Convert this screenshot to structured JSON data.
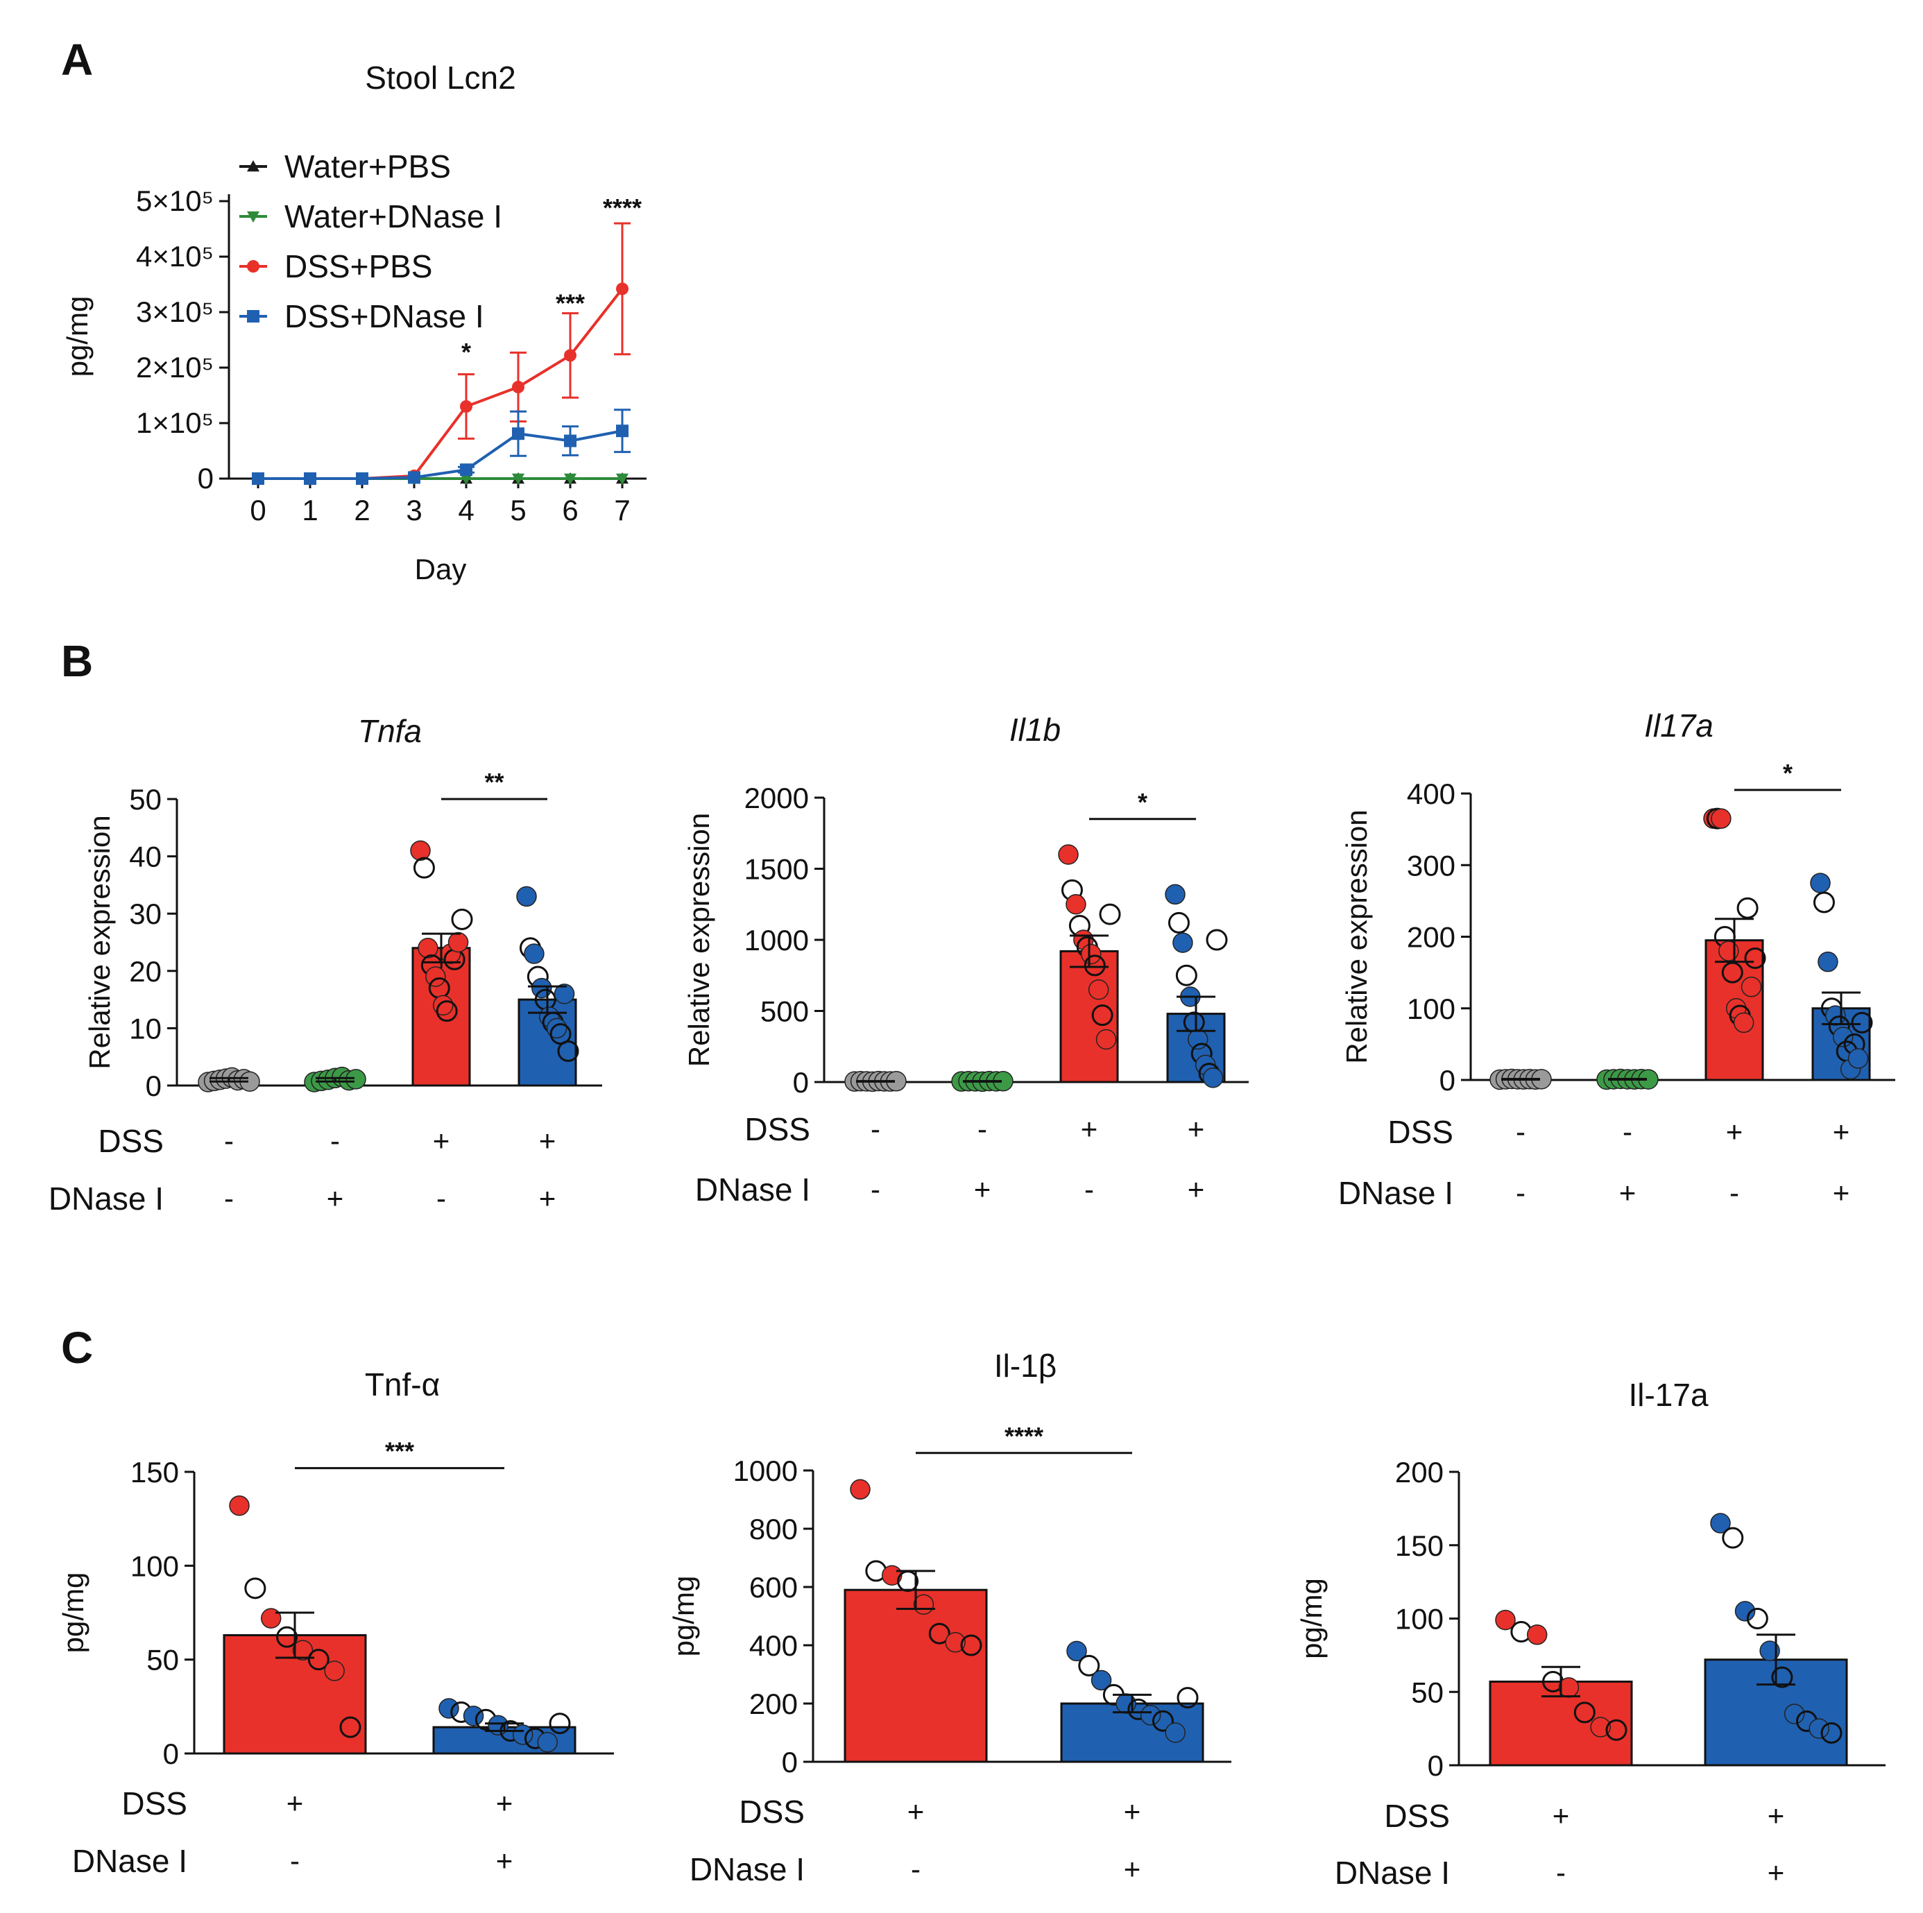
{
  "colors": {
    "water_pbs": "#1a1a1a",
    "water_dnase": "#2e8b3a",
    "dss_pbs": "#e8312a",
    "dss_dnase": "#2060b0",
    "grey_dot": "#9a9a9a",
    "green_dot": "#3c9a46"
  },
  "panels": {
    "a": "A",
    "b": "B",
    "c": "C"
  },
  "chart_data": [
    {
      "id": "A",
      "type": "line",
      "title": "Stool Lcn2",
      "xlabel": "Day",
      "ylabel": "pg/mg",
      "x": [
        0,
        1,
        2,
        3,
        4,
        5,
        6,
        7
      ],
      "xticks": [
        "0",
        "1",
        "2",
        "3",
        "4",
        "5",
        "6",
        "7"
      ],
      "ylim": [
        0,
        500000
      ],
      "yticks": [
        {
          "value": 0,
          "label": "0"
        },
        {
          "value": 100000,
          "label": "1×10⁵"
        },
        {
          "value": 200000,
          "label": "2×10⁵"
        },
        {
          "value": 300000,
          "label": "3×10⁵"
        },
        {
          "value": 400000,
          "label": "4×10⁵"
        },
        {
          "value": 500000,
          "label": "5×10⁵"
        }
      ],
      "legend_position": "top-left",
      "series": [
        {
          "name": "Water+PBS",
          "marker": "triangle-up",
          "color": "#1a1a1a",
          "values": [
            0,
            0,
            0,
            0,
            0,
            0,
            0,
            0
          ],
          "err": [
            0,
            0,
            0,
            0,
            0,
            0,
            0,
            0
          ]
        },
        {
          "name": "Water+DNase I",
          "marker": "triangle-down",
          "color": "#2e8b3a",
          "values": [
            0,
            0,
            0,
            0,
            0,
            0,
            0,
            0
          ],
          "err": [
            0,
            0,
            0,
            0,
            0,
            0,
            0,
            0
          ]
        },
        {
          "name": "DSS+PBS",
          "marker": "circle",
          "color": "#e8312a",
          "values": [
            0,
            0,
            0,
            5000,
            130000,
            165000,
            222000,
            342000
          ],
          "err": [
            0,
            0,
            0,
            0,
            58000,
            62000,
            76000,
            118000
          ]
        },
        {
          "name": "DSS+DNase I",
          "marker": "square",
          "color": "#2060b0",
          "values": [
            0,
            0,
            0,
            2000,
            16000,
            81000,
            68000,
            86000
          ],
          "err": [
            0,
            0,
            0,
            0,
            5000,
            40000,
            26000,
            38000
          ]
        }
      ],
      "annotations": [
        {
          "x": 4,
          "y": 230000,
          "text": "*"
        },
        {
          "x": 6,
          "y": 318000,
          "text": "***"
        },
        {
          "x": 7,
          "y": 490000,
          "text": "****"
        }
      ]
    },
    {
      "id": "B1",
      "type": "bar",
      "title": "Tnfa",
      "title_italic": true,
      "ylabel": "Relative expression",
      "ylim": [
        0,
        50
      ],
      "yticks": [
        0,
        10,
        20,
        30,
        40,
        50
      ],
      "row_labels": [
        "DSS",
        "DNase I"
      ],
      "groups": [
        {
          "dss": "-",
          "dnase": "-",
          "mean": 1,
          "sem": 0.3,
          "fill": "none",
          "dot": "#9a9a9a",
          "points": [
            0.6,
            0.8,
            1.0,
            1.2,
            1.4,
            0.9,
            1.1,
            0.7
          ]
        },
        {
          "dss": "-",
          "dnase": "+",
          "mean": 1,
          "sem": 0.3,
          "fill": "none",
          "dot": "#3c9a46",
          "points": [
            0.6,
            0.8,
            1.0,
            1.3,
            1.5,
            0.9,
            1.1
          ]
        },
        {
          "dss": "+",
          "dnase": "-",
          "mean": 24,
          "sem": 2.5,
          "fill": "#e8312a",
          "dot": "#e8312a",
          "points": [
            41,
            38,
            24,
            21,
            19,
            17,
            14,
            13,
            23,
            22,
            25,
            29
          ]
        },
        {
          "dss": "+",
          "dnase": "+",
          "mean": 15,
          "sem": 2.3,
          "fill": "#2060b0",
          "dot": "#2060b0",
          "points": [
            33,
            24,
            23,
            19,
            17,
            15,
            12,
            11,
            10,
            9,
            16,
            6
          ]
        }
      ],
      "sig": {
        "from": 2,
        "to": 3,
        "y": 50,
        "text": "**"
      }
    },
    {
      "id": "B2",
      "type": "bar",
      "title": "Il1b",
      "title_italic": true,
      "ylabel": "Relative expression",
      "ylim": [
        0,
        2000
      ],
      "yticks": [
        0,
        500,
        1000,
        1500,
        2000
      ],
      "row_labels": [
        "DSS",
        "DNase I"
      ],
      "groups": [
        {
          "dss": "-",
          "dnase": "-",
          "mean": 5,
          "sem": 2,
          "fill": "none",
          "dot": "#9a9a9a",
          "points": [
            4,
            6,
            5,
            3,
            7,
            5,
            4,
            6
          ]
        },
        {
          "dss": "-",
          "dnase": "+",
          "mean": 5,
          "sem": 2,
          "fill": "none",
          "dot": "#3c9a46",
          "points": [
            4,
            6,
            5,
            3,
            7,
            5,
            6
          ]
        },
        {
          "dss": "+",
          "dnase": "-",
          "mean": 920,
          "sem": 110,
          "fill": "#e8312a",
          "dot": "#e8312a",
          "points": [
            1600,
            1350,
            1250,
            1100,
            1000,
            950,
            900,
            820,
            650,
            470,
            300,
            1180
          ]
        },
        {
          "dss": "+",
          "dnase": "+",
          "mean": 480,
          "sem": 120,
          "fill": "#2060b0",
          "dot": "#2060b0",
          "points": [
            1320,
            1120,
            980,
            750,
            600,
            420,
            300,
            200,
            120,
            60,
            30,
            1000
          ]
        }
      ],
      "sig": {
        "from": 2,
        "to": 3,
        "y": 1850,
        "text": "*"
      }
    },
    {
      "id": "B3",
      "type": "bar",
      "title": "Il17a",
      "title_italic": true,
      "ylabel": "Relative expression",
      "ylim": [
        0,
        400
      ],
      "yticks": [
        0,
        100,
        200,
        300,
        400
      ],
      "row_labels": [
        "DSS",
        "DNase I"
      ],
      "groups": [
        {
          "dss": "-",
          "dnase": "-",
          "mean": 1,
          "sem": 0.5,
          "fill": "none",
          "dot": "#9a9a9a",
          "points": [
            0.5,
            1,
            1.5,
            1,
            0.8,
            1.2,
            0.7,
            1.1
          ]
        },
        {
          "dss": "-",
          "dnase": "+",
          "mean": 1,
          "sem": 0.5,
          "fill": "none",
          "dot": "#3c9a46",
          "points": [
            0.5,
            1,
            1.5,
            1,
            0.8,
            1.2,
            0.9
          ]
        },
        {
          "dss": "+",
          "dnase": "-",
          "mean": 195,
          "sem": 30,
          "fill": "#e8312a",
          "dot": "#e8312a",
          "points": [
            365,
            365,
            365,
            200,
            180,
            150,
            100,
            90,
            80,
            240,
            130,
            170
          ]
        },
        {
          "dss": "+",
          "dnase": "+",
          "mean": 100,
          "sem": 22,
          "fill": "#2060b0",
          "dot": "#2060b0",
          "points": [
            275,
            248,
            165,
            100,
            90,
            75,
            60,
            40,
            15,
            50,
            30,
            80
          ]
        }
      ],
      "sig": {
        "from": 2,
        "to": 3,
        "y": 405,
        "text": "*"
      }
    },
    {
      "id": "C1",
      "type": "bar",
      "title": "Tnf-α",
      "title_italic": false,
      "ylabel": "pg/mg",
      "ylim": [
        0,
        150
      ],
      "yticks": [
        0,
        50,
        100,
        150
      ],
      "row_labels": [
        "DSS",
        "DNase I"
      ],
      "groups": [
        {
          "dss": "+",
          "dnase": "-",
          "mean": 63,
          "sem": 12,
          "fill": "#e8312a",
          "dot": "#e8312a",
          "points": [
            132,
            88,
            72,
            62,
            55,
            50,
            44,
            14
          ]
        },
        {
          "dss": "+",
          "dnase": "+",
          "mean": 14,
          "sem": 2,
          "fill": "#2060b0",
          "dot": "#2060b0",
          "points": [
            24,
            22,
            20,
            18,
            15,
            12,
            10,
            8,
            6,
            16
          ]
        }
      ],
      "sig": {
        "from": 0,
        "to": 1,
        "y": 152,
        "text": "***"
      }
    },
    {
      "id": "C2",
      "type": "bar",
      "title": "Il-1β",
      "title_italic": false,
      "ylabel": "pg/mg",
      "ylim": [
        0,
        1000
      ],
      "yticks": [
        0,
        200,
        400,
        600,
        800,
        1000
      ],
      "row_labels": [
        "DSS",
        "DNase I"
      ],
      "groups": [
        {
          "dss": "+",
          "dnase": "-",
          "mean": 590,
          "sem": 65,
          "fill": "#e8312a",
          "dot": "#e8312a",
          "points": [
            935,
            655,
            640,
            620,
            540,
            440,
            410,
            400
          ]
        },
        {
          "dss": "+",
          "dnase": "+",
          "mean": 200,
          "sem": 30,
          "fill": "#2060b0",
          "dot": "#2060b0",
          "points": [
            380,
            330,
            280,
            230,
            200,
            180,
            160,
            140,
            100,
            220
          ]
        }
      ],
      "sig": {
        "from": 0,
        "to": 1,
        "y": 1060,
        "text": "****"
      }
    },
    {
      "id": "C3",
      "type": "bar",
      "title": "Il-17a",
      "title_italic": false,
      "ylabel": "pg/mg",
      "ylim": [
        0,
        200
      ],
      "yticks": [
        0,
        50,
        100,
        150,
        200
      ],
      "row_labels": [
        "DSS",
        "DNase I"
      ],
      "groups": [
        {
          "dss": "+",
          "dnase": "-",
          "mean": 57,
          "sem": 10,
          "fill": "#e8312a",
          "dot": "#e8312a",
          "points": [
            99,
            91,
            89,
            57,
            53,
            36,
            26,
            24
          ]
        },
        {
          "dss": "+",
          "dnase": "+",
          "mean": 72,
          "sem": 17,
          "fill": "#2060b0",
          "dot": "#2060b0",
          "points": [
            165,
            155,
            105,
            100,
            78,
            60,
            35,
            30,
            25,
            22
          ]
        }
      ],
      "sig": null
    }
  ]
}
